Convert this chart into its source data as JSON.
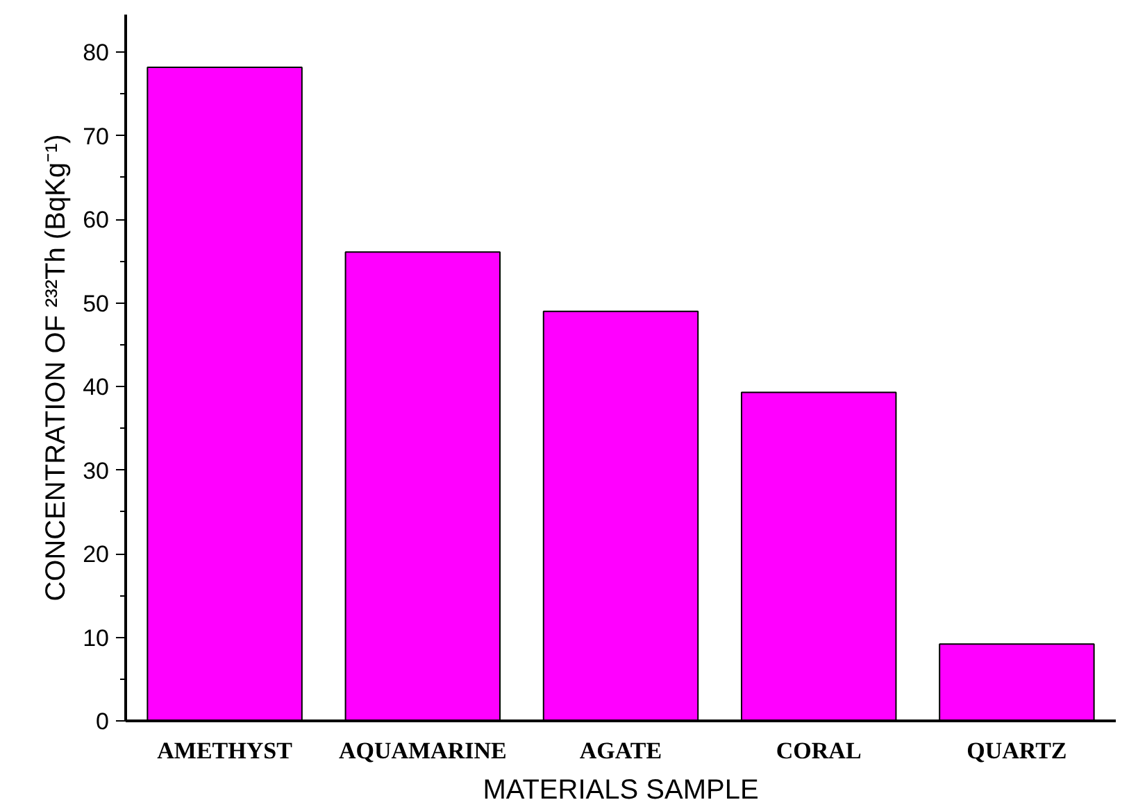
{
  "chart_data": {
    "type": "bar",
    "xlabel": "MATERIALS SAMPLE",
    "ylabel": "CONCENTRATION OF ²³²Th (BqKg⁻¹)",
    "categories": [
      "AMETHYST",
      "AQUAMARINE",
      "AGATE",
      "CORAL",
      "QUARTZ"
    ],
    "values": [
      78.2,
      56.1,
      49.0,
      39.3,
      9.2
    ],
    "color": "#ff00ff",
    "ylim": [
      0,
      84.5
    ],
    "yticks": [
      0,
      {
        "value": 5,
        "label": null
      },
      10,
      {
        "value": 15,
        "label": null
      },
      20,
      {
        "value": 25,
        "label": null
      },
      30,
      {
        "value": 35,
        "label": null
      },
      40,
      {
        "value": 45,
        "label": null
      },
      50,
      {
        "value": 55,
        "label": null
      },
      60,
      {
        "value": 65,
        "label": null
      },
      70,
      {
        "value": 75,
        "label": null
      },
      80
    ],
    "grid": false
  }
}
